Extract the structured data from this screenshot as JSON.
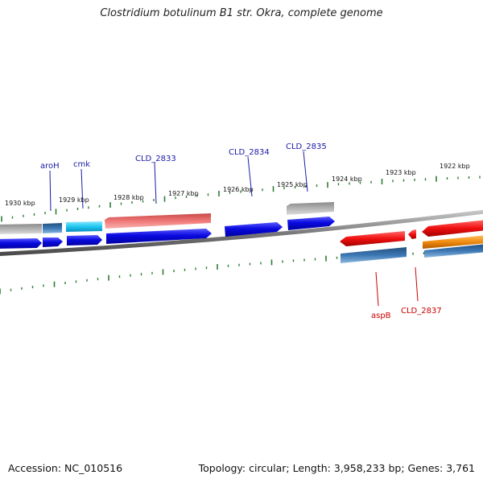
{
  "title": "Clostridium botulinum B1 str. Okra, complete genome",
  "footer": {
    "accession": "Accession: NC_010516",
    "summary": "Topology: circular; Length: 3,958,233 bp; Genes: 3,761"
  },
  "colors": {
    "tick": "#2e7d32",
    "label_forward": "#1a1aa8",
    "label_reverse": "#cc0000",
    "backbone": "#8a8a8a",
    "gene_blue": "#0a0ae0",
    "gene_cyan": "#1ec8f0",
    "gene_salmon": "#f07878",
    "gene_gray": "#b4b4b4",
    "gene_steel": "#3c78b4",
    "gene_red": "#f01010",
    "gene_orange": "#f08c10"
  },
  "kbp_labels": [
    "1930 kbp",
    "1929 kbp",
    "1928 kbp",
    "1927 kbp",
    "1926 kbp",
    "1925 kbp",
    "1924 kbp",
    "1923 kbp",
    "1922 kbp"
  ],
  "gene_labels": {
    "forward": [
      "aroH",
      "cmk",
      "CLD_2833",
      "CLD_2834",
      "CLD_2835"
    ],
    "reverse": [
      "aspB",
      "CLD_2837"
    ]
  }
}
